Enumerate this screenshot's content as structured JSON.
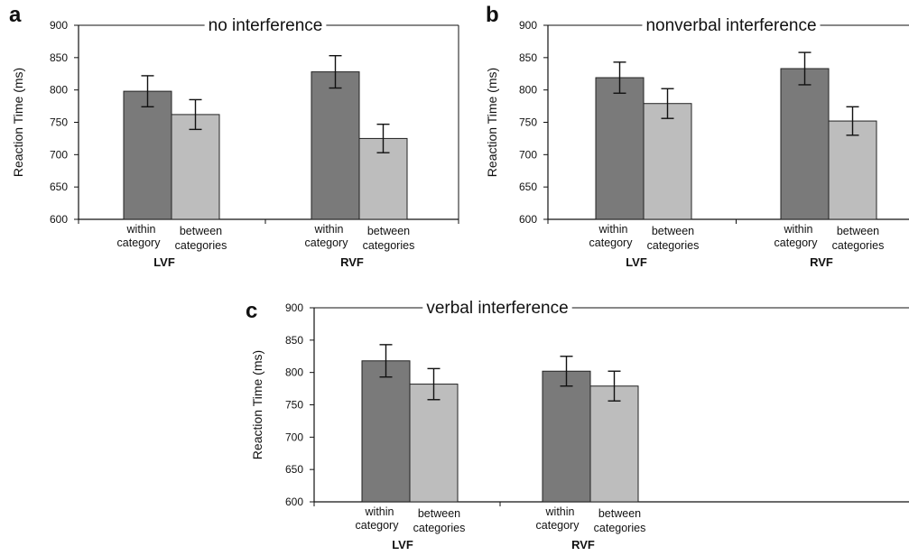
{
  "chart_data": [
    {
      "type": "bar",
      "panel": "a",
      "title": "no interference",
      "ylabel": "Reaction Time (ms)",
      "ylim": [
        600,
        900
      ],
      "yticks": [
        600,
        650,
        700,
        750,
        800,
        850,
        900
      ],
      "groups": [
        "LVF",
        "RVF"
      ],
      "categories": [
        "within category",
        "between categories"
      ],
      "series": [
        {
          "name": "within category",
          "color": "#7a7a7a",
          "values": [
            798,
            828
          ],
          "errors": [
            24,
            25
          ]
        },
        {
          "name": "between categories",
          "color": "#bdbdbd",
          "values": [
            762,
            725
          ],
          "errors": [
            23,
            22
          ]
        }
      ]
    },
    {
      "type": "bar",
      "panel": "b",
      "title": "nonverbal interference",
      "ylabel": "Reaction Time (ms)",
      "ylim": [
        600,
        900
      ],
      "yticks": [
        600,
        650,
        700,
        750,
        800,
        850,
        900
      ],
      "groups": [
        "LVF",
        "RVF"
      ],
      "categories": [
        "within category",
        "between categories"
      ],
      "series": [
        {
          "name": "within category",
          "color": "#7a7a7a",
          "values": [
            819,
            833
          ],
          "errors": [
            24,
            25
          ]
        },
        {
          "name": "between categories",
          "color": "#bdbdbd",
          "values": [
            779,
            752
          ],
          "errors": [
            23,
            22
          ]
        }
      ]
    },
    {
      "type": "bar",
      "panel": "c",
      "title": "verbal interference",
      "ylabel": "Reaction Time (ms)",
      "ylim": [
        600,
        900
      ],
      "yticks": [
        600,
        650,
        700,
        750,
        800,
        850,
        900
      ],
      "groups": [
        "LVF",
        "RVF"
      ],
      "categories": [
        "within category",
        "between categories"
      ],
      "series": [
        {
          "name": "within category",
          "color": "#7a7a7a",
          "values": [
            818,
            802
          ],
          "errors": [
            25,
            23
          ]
        },
        {
          "name": "between categories",
          "color": "#bdbdbd",
          "values": [
            782,
            779
          ],
          "errors": [
            24,
            23
          ]
        }
      ]
    }
  ],
  "style": {
    "bar_stroke": "#222222",
    "axis_color": "#111111",
    "frame_color": "#111111"
  }
}
